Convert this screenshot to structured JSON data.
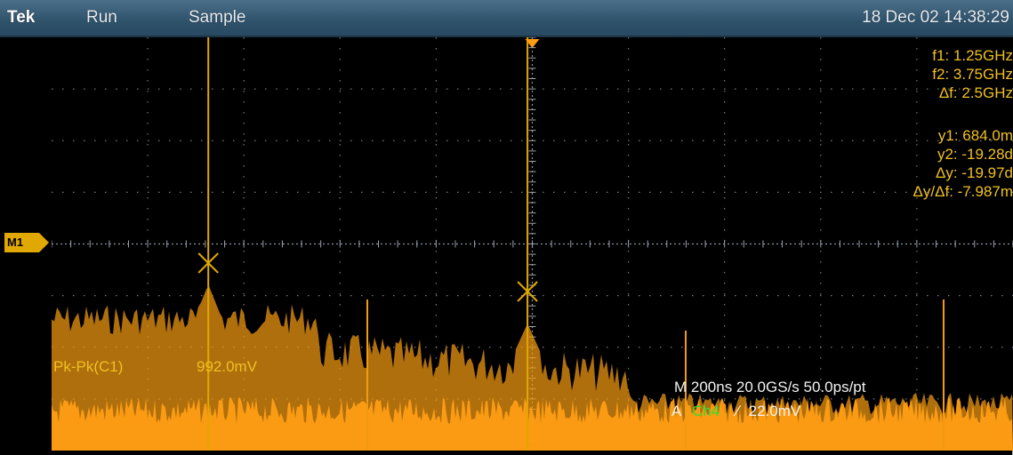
{
  "header": {
    "brand": "Tek",
    "acq_state": "Run",
    "acq_mode": "Sample",
    "datetime": "18 Dec 02 14:38:29"
  },
  "cursor_readouts": {
    "f1": "f1:  1.25GHz",
    "f2": "f2:  3.75GHz",
    "df": "Δf:  2.5GHz",
    "y1": "y1:  684.0m",
    "y2": "y2: -19.28d",
    "dy": "Δy: -19.97d",
    "dydf": "Δy/Δf: -7.987m"
  },
  "math_marker": "M1",
  "measurement": {
    "name": "Pk-Pk(C1)",
    "value": "992.0mV"
  },
  "acquisition": {
    "timebase": "M 200ns 20.0GS/s  50.0ps/pt",
    "trigger_prefix": "A",
    "trigger_channel": "Ch4",
    "trigger_slope": "∕",
    "trigger_level": "22.0mV"
  },
  "colors": {
    "spectrum": "#f29a10",
    "cursor": "#e0a800",
    "readout": "#f0c020",
    "grid": "#9aa3ad",
    "channel4": "#33dd33"
  },
  "cursors": {
    "f1_fraction": 0.163,
    "f2_fraction": 0.495
  }
}
